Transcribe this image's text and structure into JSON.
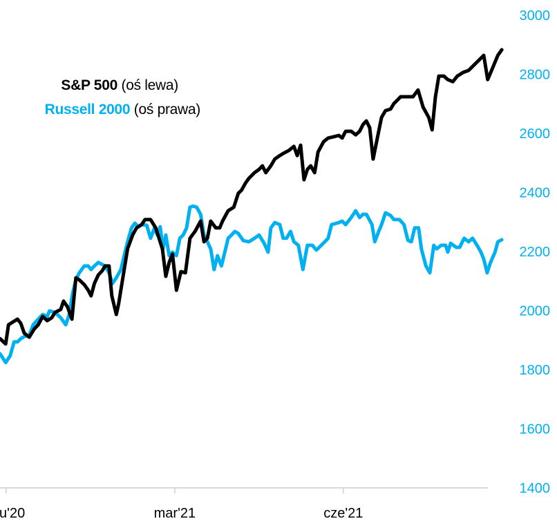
{
  "chart_data": {
    "type": "line",
    "title": "",
    "x_unit": "months since Dec 2020 tick",
    "xlim": [
      -0.11,
      8.82
    ],
    "x_ticks": [
      {
        "value": 0,
        "label": "u'20"
      },
      {
        "value": 3,
        "label": "mar'21"
      },
      {
        "value": 6,
        "label": "cze'21"
      }
    ],
    "right_axis": {
      "ylim": [
        1400,
        3000
      ],
      "ticks": [
        "3000",
        "2800",
        "2600",
        "2400",
        "2200",
        "2000",
        "1800",
        "1600",
        "1400"
      ],
      "color": "#00B0F0"
    },
    "grid": false,
    "legend": {
      "position": "top-left",
      "entries": [
        {
          "name": "S&P 500",
          "note": "(oś lewa)",
          "color": "#000000"
        },
        {
          "name": "Russell 2000",
          "note": "(oś prawa)",
          "color": "#00B0F0"
        }
      ]
    },
    "series": [
      {
        "name": "S&P 500",
        "axis": "left",
        "color": "#000000",
        "points": [
          [
            -0.11,
            1905
          ],
          [
            -0.01,
            1887
          ],
          [
            0.04,
            1952
          ],
          [
            0.14,
            1964
          ],
          [
            0.2,
            1971
          ],
          [
            0.26,
            1957
          ],
          [
            0.32,
            1924
          ],
          [
            0.41,
            1910
          ],
          [
            0.5,
            1938
          ],
          [
            0.57,
            1952
          ],
          [
            0.65,
            1980
          ],
          [
            0.73,
            1966
          ],
          [
            0.81,
            1976
          ],
          [
            0.87,
            1994
          ],
          [
            0.97,
            2004
          ],
          [
            1.02,
            2032
          ],
          [
            1.09,
            2013
          ],
          [
            1.17,
            1971
          ],
          [
            1.24,
            2111
          ],
          [
            1.3,
            2104
          ],
          [
            1.39,
            2088
          ],
          [
            1.46,
            2069
          ],
          [
            1.51,
            2050
          ],
          [
            1.57,
            2092
          ],
          [
            1.64,
            2121
          ],
          [
            1.71,
            2135
          ],
          [
            1.76,
            2151
          ],
          [
            1.83,
            2151
          ],
          [
            1.88,
            2050
          ],
          [
            1.96,
            1987
          ],
          [
            2.0,
            2022
          ],
          [
            2.08,
            2116
          ],
          [
            2.16,
            2209
          ],
          [
            2.25,
            2256
          ],
          [
            2.32,
            2280
          ],
          [
            2.41,
            2291
          ],
          [
            2.47,
            2308
          ],
          [
            2.57,
            2308
          ],
          [
            2.66,
            2280
          ],
          [
            2.72,
            2245
          ],
          [
            2.78,
            2209
          ],
          [
            2.84,
            2116
          ],
          [
            2.9,
            2163
          ],
          [
            2.96,
            2191
          ],
          [
            3.03,
            2069
          ],
          [
            3.11,
            2132
          ],
          [
            3.19,
            2128
          ],
          [
            3.27,
            2245
          ],
          [
            3.36,
            2268
          ],
          [
            3.46,
            2303
          ],
          [
            3.52,
            2233
          ],
          [
            3.58,
            2245
          ],
          [
            3.64,
            2303
          ],
          [
            3.73,
            2280
          ],
          [
            3.8,
            2280
          ],
          [
            3.85,
            2303
          ],
          [
            3.95,
            2338
          ],
          [
            4.05,
            2350
          ],
          [
            4.13,
            2397
          ],
          [
            4.19,
            2408
          ],
          [
            4.26,
            2432
          ],
          [
            4.32,
            2448
          ],
          [
            4.42,
            2467
          ],
          [
            4.5,
            2478
          ],
          [
            4.56,
            2490
          ],
          [
            4.62,
            2467
          ],
          [
            4.71,
            2490
          ],
          [
            4.78,
            2513
          ],
          [
            4.87,
            2525
          ],
          [
            4.93,
            2532
          ],
          [
            5.03,
            2542
          ],
          [
            5.12,
            2556
          ],
          [
            5.18,
            2525
          ],
          [
            5.24,
            2560
          ],
          [
            5.3,
            2443
          ],
          [
            5.36,
            2478
          ],
          [
            5.42,
            2490
          ],
          [
            5.49,
            2467
          ],
          [
            5.55,
            2537
          ],
          [
            5.65,
            2572
          ],
          [
            5.73,
            2584
          ],
          [
            5.82,
            2588
          ],
          [
            5.92,
            2593
          ],
          [
            5.98,
            2584
          ],
          [
            6.04,
            2607
          ],
          [
            6.14,
            2607
          ],
          [
            6.22,
            2595
          ],
          [
            6.29,
            2607
          ],
          [
            6.35,
            2630
          ],
          [
            6.41,
            2642
          ],
          [
            6.47,
            2619
          ],
          [
            6.53,
            2513
          ],
          [
            6.63,
            2607
          ],
          [
            6.68,
            2654
          ],
          [
            6.75,
            2677
          ],
          [
            6.84,
            2682
          ],
          [
            6.9,
            2701
          ],
          [
            6.96,
            2712
          ],
          [
            7.02,
            2724
          ],
          [
            7.15,
            2724
          ],
          [
            7.24,
            2724
          ],
          [
            7.33,
            2747
          ],
          [
            7.42,
            2689
          ],
          [
            7.52,
            2654
          ],
          [
            7.58,
            2612
          ],
          [
            7.64,
            2724
          ],
          [
            7.7,
            2794
          ],
          [
            7.79,
            2794
          ],
          [
            7.86,
            2782
          ],
          [
            7.95,
            2775
          ],
          [
            8.03,
            2794
          ],
          [
            8.13,
            2806
          ],
          [
            8.23,
            2813
          ],
          [
            8.35,
            2836
          ],
          [
            8.5,
            2864
          ],
          [
            8.57,
            2782
          ],
          [
            8.65,
            2818
          ],
          [
            8.75,
            2864
          ],
          [
            8.82,
            2883
          ]
        ]
      },
      {
        "name": "Russell 2000",
        "axis": "right",
        "color": "#00B0F0",
        "points": [
          [
            -0.11,
            1854
          ],
          [
            -0.01,
            1824
          ],
          [
            0.07,
            1847
          ],
          [
            0.14,
            1894
          ],
          [
            0.2,
            1894
          ],
          [
            0.26,
            1905
          ],
          [
            0.32,
            1912
          ],
          [
            0.41,
            1917
          ],
          [
            0.48,
            1952
          ],
          [
            0.57,
            1971
          ],
          [
            0.65,
            1987
          ],
          [
            0.73,
            1980
          ],
          [
            0.77,
            1999
          ],
          [
            0.87,
            1994
          ],
          [
            0.97,
            1976
          ],
          [
            1.06,
            1952
          ],
          [
            1.12,
            1987
          ],
          [
            1.18,
            2057
          ],
          [
            1.24,
            2104
          ],
          [
            1.3,
            2128
          ],
          [
            1.39,
            2151
          ],
          [
            1.46,
            2151
          ],
          [
            1.51,
            2139
          ],
          [
            1.57,
            2151
          ],
          [
            1.64,
            2163
          ],
          [
            1.71,
            2156
          ],
          [
            1.76,
            2151
          ],
          [
            1.83,
            2128
          ],
          [
            1.89,
            2092
          ],
          [
            1.96,
            2111
          ],
          [
            2.04,
            2139
          ],
          [
            2.1,
            2186
          ],
          [
            2.16,
            2233
          ],
          [
            2.23,
            2280
          ],
          [
            2.29,
            2296
          ],
          [
            2.35,
            2284
          ],
          [
            2.41,
            2291
          ],
          [
            2.5,
            2289
          ],
          [
            2.57,
            2245
          ],
          [
            2.64,
            2280
          ],
          [
            2.69,
            2256
          ],
          [
            2.74,
            2284
          ],
          [
            2.79,
            2209
          ],
          [
            2.84,
            2256
          ],
          [
            2.9,
            2186
          ],
          [
            2.96,
            2198
          ],
          [
            3.03,
            2186
          ],
          [
            3.09,
            2245
          ],
          [
            3.15,
            2256
          ],
          [
            3.21,
            2280
          ],
          [
            3.27,
            2350
          ],
          [
            3.33,
            2354
          ],
          [
            3.39,
            2350
          ],
          [
            3.46,
            2326
          ],
          [
            3.52,
            2256
          ],
          [
            3.58,
            2233
          ],
          [
            3.64,
            2209
          ],
          [
            3.7,
            2139
          ],
          [
            3.76,
            2186
          ],
          [
            3.83,
            2151
          ],
          [
            3.89,
            2198
          ],
          [
            3.95,
            2245
          ],
          [
            4.01,
            2256
          ],
          [
            4.07,
            2268
          ],
          [
            4.13,
            2261
          ],
          [
            4.22,
            2237
          ],
          [
            4.32,
            2233
          ],
          [
            4.42,
            2245
          ],
          [
            4.5,
            2256
          ],
          [
            4.59,
            2228
          ],
          [
            4.66,
            2198
          ],
          [
            4.71,
            2280
          ],
          [
            4.78,
            2298
          ],
          [
            4.87,
            2291
          ],
          [
            4.93,
            2245
          ],
          [
            4.99,
            2245
          ],
          [
            5.06,
            2268
          ],
          [
            5.12,
            2233
          ],
          [
            5.2,
            2221
          ],
          [
            5.28,
            2139
          ],
          [
            5.36,
            2221
          ],
          [
            5.45,
            2221
          ],
          [
            5.52,
            2205
          ],
          [
            5.57,
            2214
          ],
          [
            5.67,
            2233
          ],
          [
            5.73,
            2245
          ],
          [
            5.79,
            2291
          ],
          [
            5.92,
            2298
          ],
          [
            5.98,
            2303
          ],
          [
            6.04,
            2291
          ],
          [
            6.14,
            2315
          ],
          [
            6.22,
            2338
          ],
          [
            6.29,
            2315
          ],
          [
            6.35,
            2326
          ],
          [
            6.41,
            2326
          ],
          [
            6.51,
            2291
          ],
          [
            6.56,
            2233
          ],
          [
            6.63,
            2268
          ],
          [
            6.68,
            2291
          ],
          [
            6.75,
            2331
          ],
          [
            6.84,
            2322
          ],
          [
            6.9,
            2308
          ],
          [
            7.0,
            2308
          ],
          [
            7.08,
            2291
          ],
          [
            7.15,
            2238
          ],
          [
            7.21,
            2233
          ],
          [
            7.27,
            2280
          ],
          [
            7.34,
            2280
          ],
          [
            7.39,
            2209
          ],
          [
            7.47,
            2151
          ],
          [
            7.54,
            2128
          ],
          [
            7.61,
            2221
          ],
          [
            7.66,
            2209
          ],
          [
            7.74,
            2221
          ],
          [
            7.82,
            2221
          ],
          [
            7.86,
            2198
          ],
          [
            7.91,
            2228
          ],
          [
            8.01,
            2214
          ],
          [
            8.07,
            2214
          ],
          [
            8.15,
            2245
          ],
          [
            8.23,
            2233
          ],
          [
            8.3,
            2245
          ],
          [
            8.38,
            2221
          ],
          [
            8.45,
            2198
          ],
          [
            8.5,
            2174
          ],
          [
            8.56,
            2128
          ],
          [
            8.62,
            2163
          ],
          [
            8.7,
            2198
          ],
          [
            8.75,
            2233
          ],
          [
            8.82,
            2240
          ]
        ]
      }
    ]
  }
}
